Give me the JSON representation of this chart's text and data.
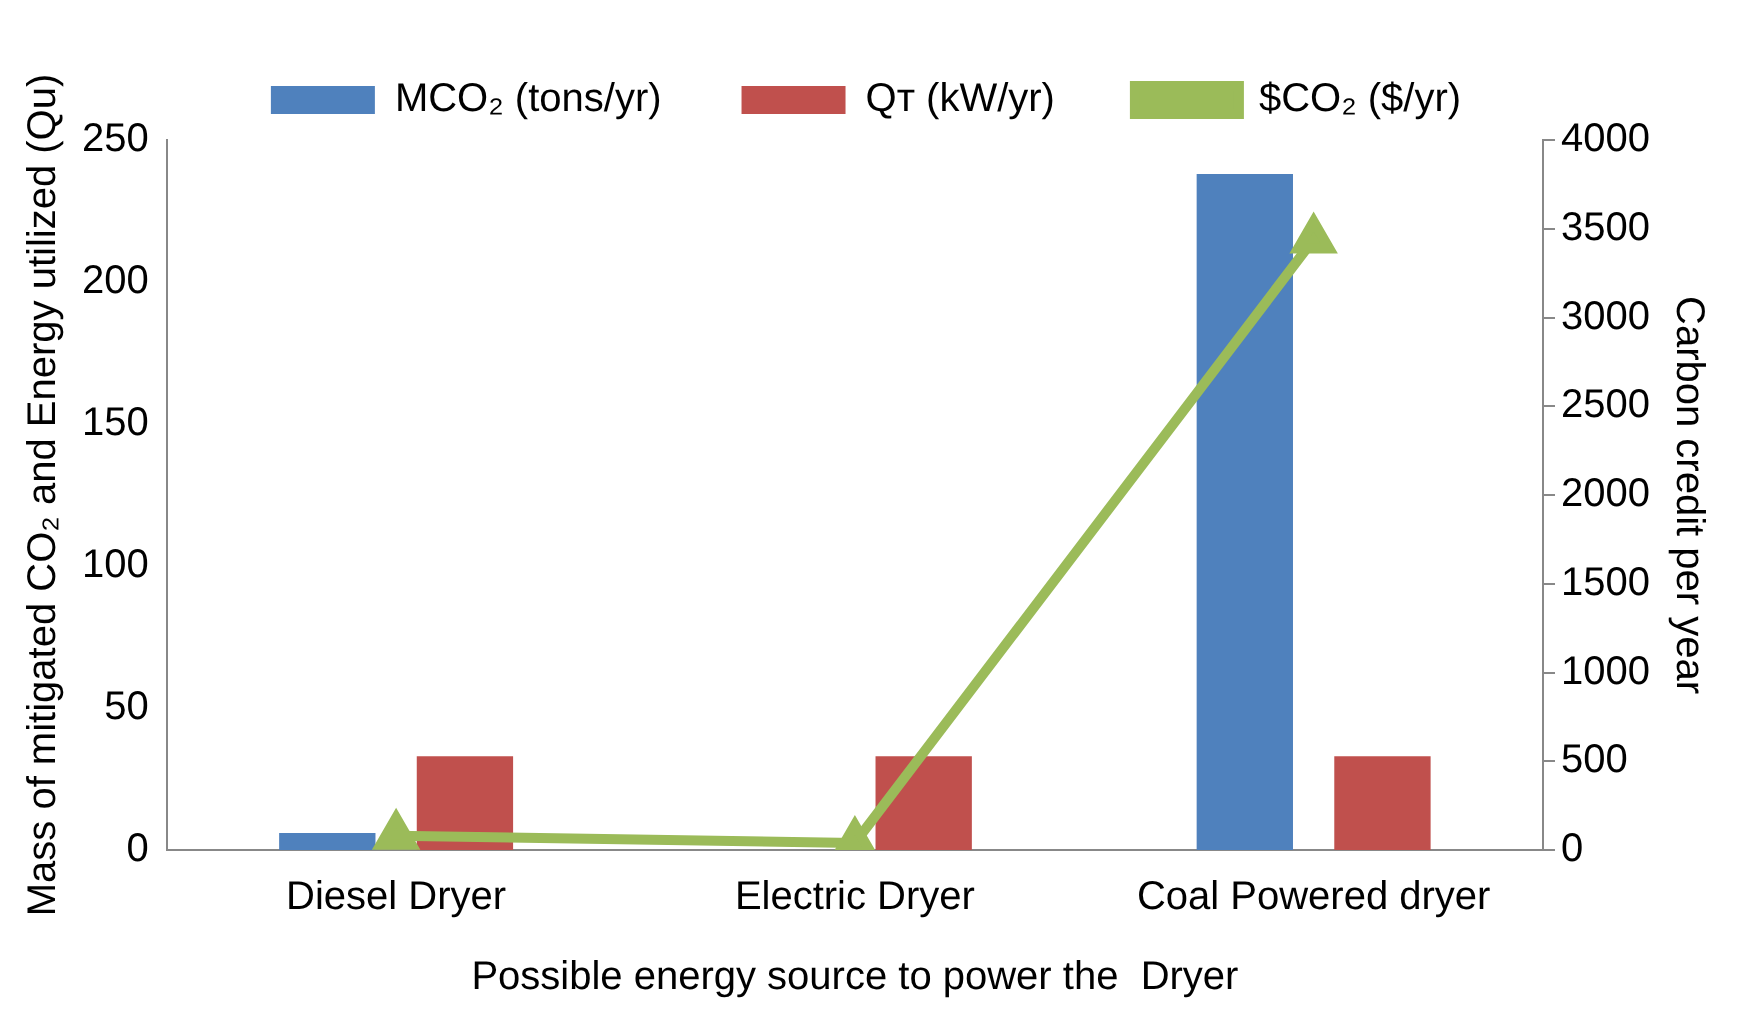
{
  "chart_data": {
    "type": "bar",
    "xlabel": "Possible energy source to power the  Dryer",
    "ylabel": "Mass of mitigated CO₂ and Energy utilized (Qu)",
    "y2label": "Carbon credit per year",
    "categories": [
      "Diesel Dryer",
      "Electric Dryer",
      "Coal Powered dryer"
    ],
    "series": [
      {
        "name": "MCO₂ (tons/yr)",
        "color": "#4f81bd",
        "values": [
          6,
          0,
          238
        ]
      },
      {
        "name": "Qᴛ (kW/yr)",
        "color": "#c0504d",
        "values": [
          33,
          33,
          33
        ]
      },
      {
        "name": "$CO₂ ($/yr)",
        "type": "line",
        "axis": "y2",
        "color": "#9bbb59",
        "marker": "triangle",
        "values": [
          80,
          40,
          3440
        ]
      }
    ],
    "ylim": [
      0,
      250
    ],
    "yticks": [
      0,
      50,
      100,
      150,
      200,
      250
    ],
    "y2lim": [
      0,
      4000
    ],
    "y2ticks": [
      0,
      500,
      1000,
      1500,
      2000,
      2500,
      3000,
      3500,
      4000
    ],
    "grid": false,
    "legend": "top"
  }
}
